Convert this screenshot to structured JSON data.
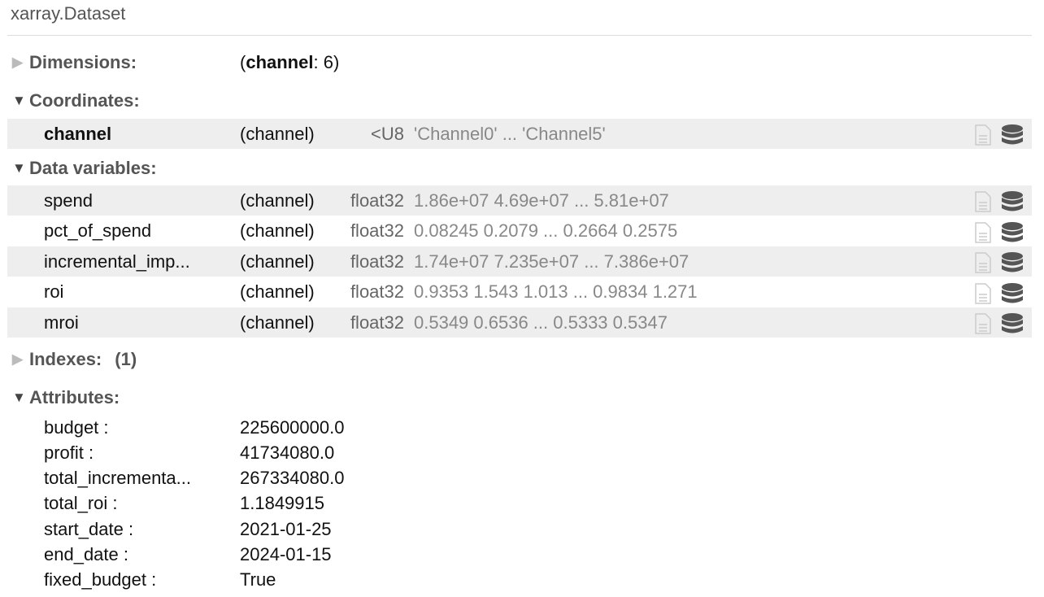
{
  "title": "xarray.Dataset",
  "dimensions": {
    "label": "Dimensions:",
    "dim_name": "channel",
    "dim_size": ": 6"
  },
  "coordinates": {
    "label": "Coordinates:",
    "items": [
      {
        "name": "channel",
        "dims": "(channel)",
        "dtype": "<U8",
        "preview": "'Channel0' ... 'Channel5'"
      }
    ]
  },
  "data_variables": {
    "label": "Data variables:",
    "items": [
      {
        "name": "spend",
        "dims": "(channel)",
        "dtype": "float32",
        "preview": "1.86e+07 4.69e+07 ... 5.81e+07"
      },
      {
        "name": "pct_of_spend",
        "dims": "(channel)",
        "dtype": "float32",
        "preview": "0.08245 0.2079 ... 0.2664 0.2575"
      },
      {
        "name": "incremental_imp...",
        "dims": "(channel)",
        "dtype": "float32",
        "preview": "1.74e+07 7.235e+07 ... 7.386e+07"
      },
      {
        "name": "roi",
        "dims": "(channel)",
        "dtype": "float32",
        "preview": "0.9353 1.543 1.013 ... 0.9834 1.271"
      },
      {
        "name": "mroi",
        "dims": "(channel)",
        "dtype": "float32",
        "preview": "0.5349 0.6536 ... 0.5333 0.5347"
      }
    ]
  },
  "indexes": {
    "label": "Indexes:",
    "count": "(1)"
  },
  "attributes": {
    "label": "Attributes:",
    "items": [
      {
        "key": "budget :",
        "value": "225600000.0"
      },
      {
        "key": "profit :",
        "value": "41734080.0"
      },
      {
        "key": "total_incrementa...",
        "value": "267334080.0"
      },
      {
        "key": "total_roi :",
        "value": "1.1849915"
      },
      {
        "key": "start_date :",
        "value": "2021-01-25"
      },
      {
        "key": "end_date :",
        "value": "2024-01-15"
      },
      {
        "key": "fixed_budget :",
        "value": "True"
      }
    ]
  },
  "icons": {
    "attrs": "file-icon",
    "data": "database-icon"
  }
}
